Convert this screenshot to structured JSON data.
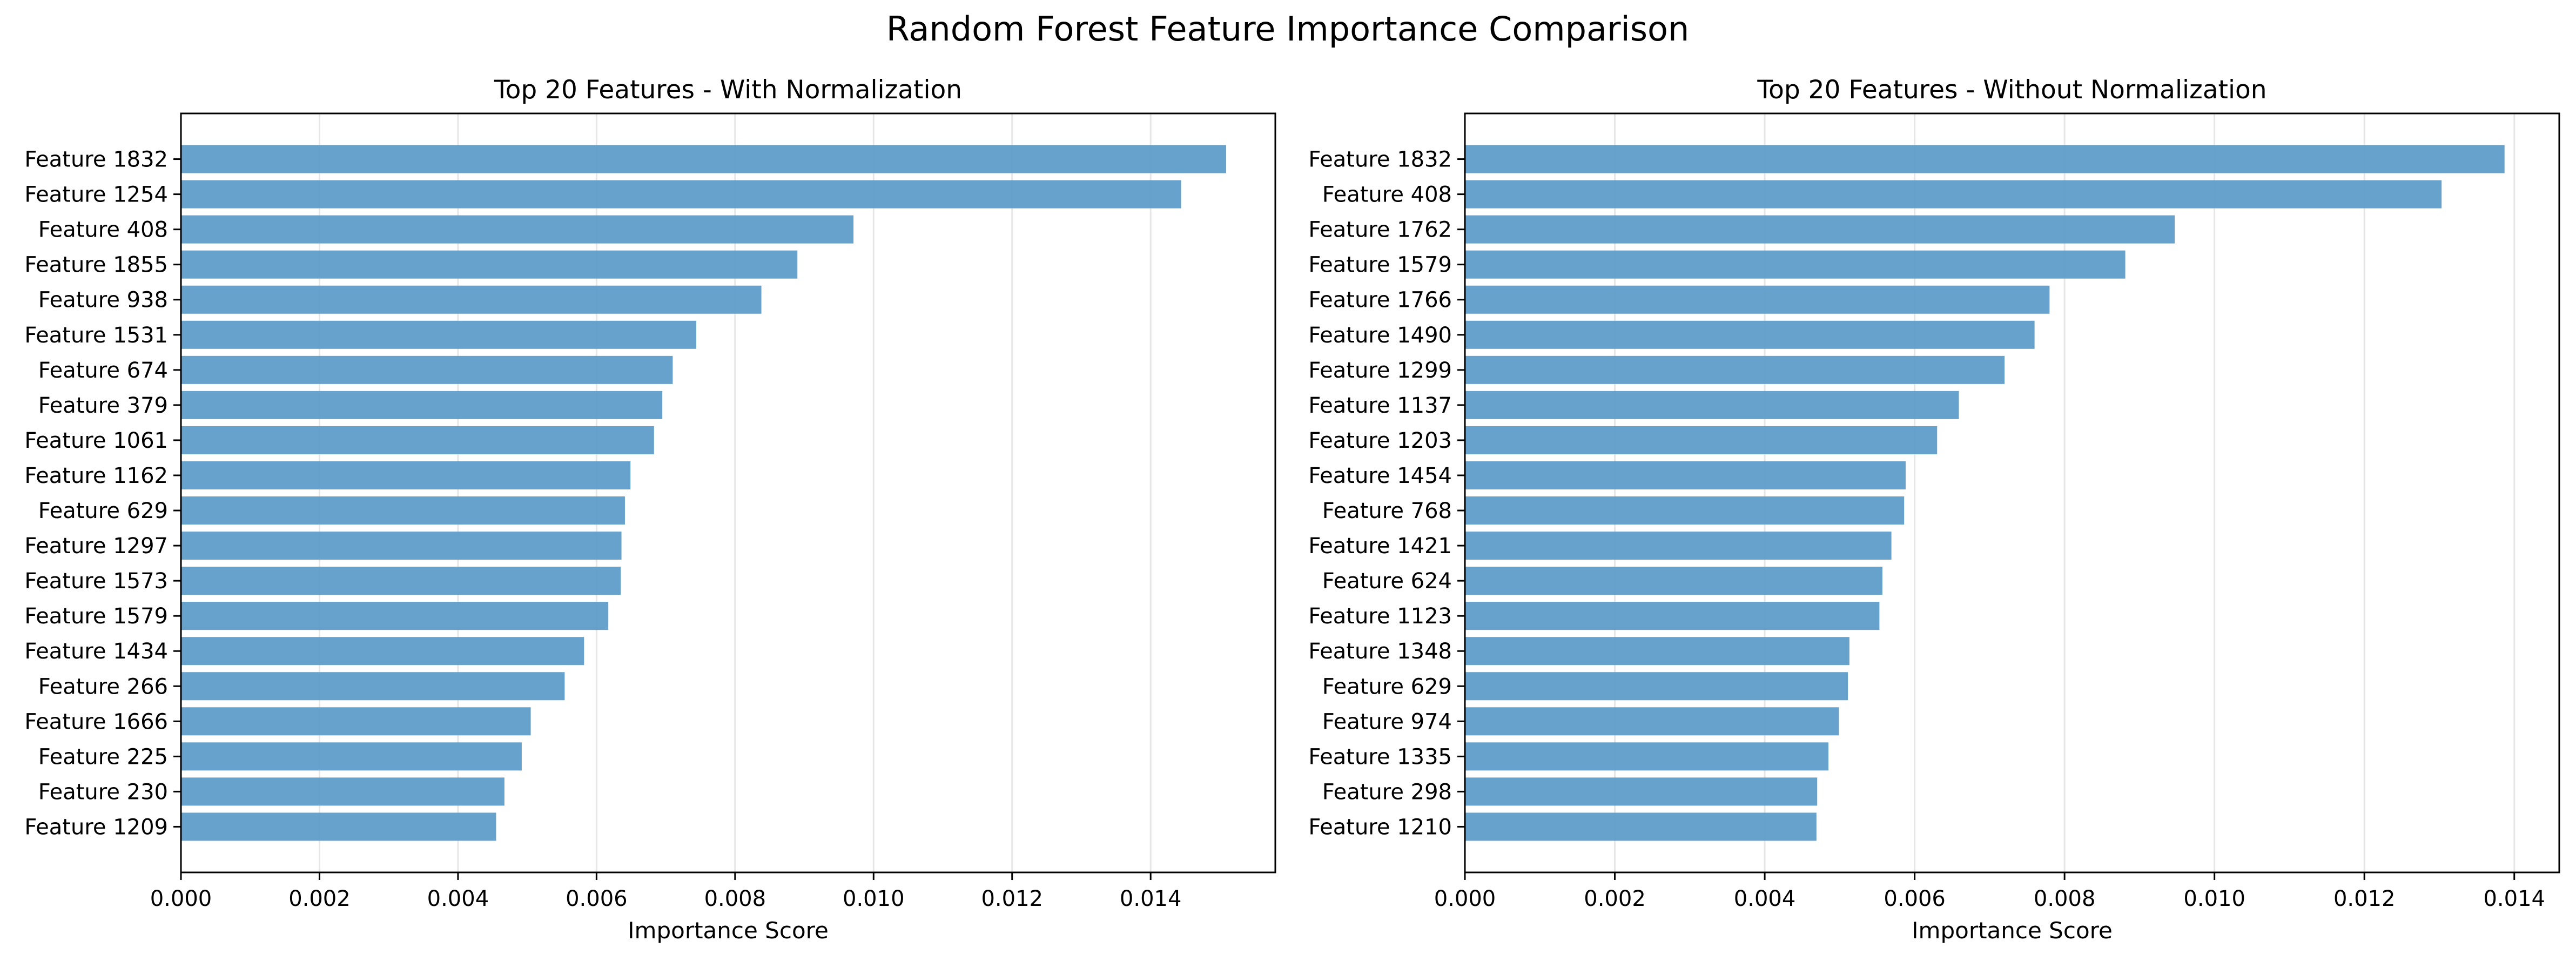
{
  "figure": {
    "title": "Random Forest Feature Importance Comparison"
  },
  "chart_data": [
    {
      "type": "bar",
      "orientation": "horizontal",
      "title": "Top 20 Features - With Normalization",
      "xlabel": "Importance Score",
      "ylabel": "",
      "xlim": [
        0,
        0.0158
      ],
      "xticks": [
        0.0,
        0.002,
        0.004,
        0.006,
        0.008,
        0.01,
        0.012,
        0.014
      ],
      "xtick_labels": [
        "0.000",
        "0.002",
        "0.004",
        "0.006",
        "0.008",
        "0.010",
        "0.012",
        "0.014"
      ],
      "grid": "x",
      "bar_color": "#5b9bc8",
      "categories": [
        "Feature 1832",
        "Feature 1254",
        "Feature 408",
        "Feature 1855",
        "Feature 938",
        "Feature 1531",
        "Feature 674",
        "Feature 379",
        "Feature 1061",
        "Feature 1162",
        "Feature 629",
        "Feature 1297",
        "Feature 1573",
        "Feature 1579",
        "Feature 1434",
        "Feature 266",
        "Feature 1666",
        "Feature 225",
        "Feature 230",
        "Feature 1209"
      ],
      "values": [
        0.01509,
        0.01444,
        0.00971,
        0.0089,
        0.00838,
        0.00744,
        0.0071,
        0.00695,
        0.00683,
        0.00649,
        0.00641,
        0.00636,
        0.00635,
        0.00617,
        0.00582,
        0.00554,
        0.00505,
        0.00492,
        0.00467,
        0.00455
      ]
    },
    {
      "type": "bar",
      "orientation": "horizontal",
      "title": "Top 20 Features - Without Normalization",
      "xlabel": "Importance Score",
      "ylabel": "",
      "xlim": [
        0,
        0.0146
      ],
      "xticks": [
        0.0,
        0.002,
        0.004,
        0.006,
        0.008,
        0.01,
        0.012,
        0.014
      ],
      "xtick_labels": [
        "0.000",
        "0.002",
        "0.004",
        "0.006",
        "0.008",
        "0.010",
        "0.012",
        "0.014"
      ],
      "grid": "x",
      "bar_color": "#5b9bc8",
      "categories": [
        "Feature 1832",
        "Feature 408",
        "Feature 1762",
        "Feature 1579",
        "Feature 1766",
        "Feature 1490",
        "Feature 1299",
        "Feature 1137",
        "Feature 1203",
        "Feature 1454",
        "Feature 768",
        "Feature 1421",
        "Feature 624",
        "Feature 1123",
        "Feature 1348",
        "Feature 629",
        "Feature 974",
        "Feature 1335",
        "Feature 298",
        "Feature 1210"
      ],
      "values": [
        0.01387,
        0.01303,
        0.00947,
        0.00881,
        0.0078,
        0.0076,
        0.0072,
        0.00659,
        0.0063,
        0.00588,
        0.00586,
        0.00569,
        0.00557,
        0.00553,
        0.00513,
        0.00511,
        0.00499,
        0.00485,
        0.0047,
        0.00469
      ]
    }
  ]
}
